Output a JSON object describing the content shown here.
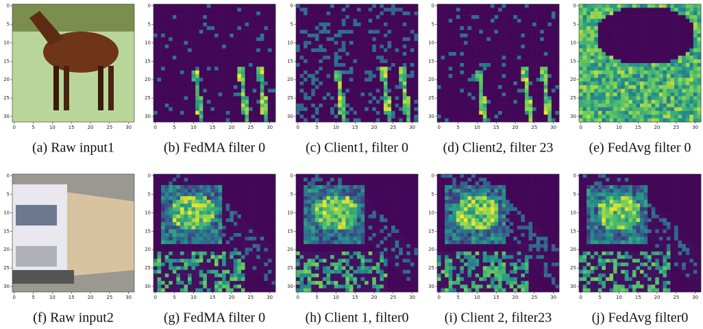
{
  "axis_ticks": [
    0,
    5,
    10,
    15,
    20,
    25,
    30
  ],
  "panels": [
    {
      "caption": "(a) Raw input1"
    },
    {
      "caption": "(b) FedMA filter 0"
    },
    {
      "caption": "(c) Client1, filter 0"
    },
    {
      "caption": "(d) Client2, filter 23"
    },
    {
      "caption": "(e) FedAvg filter 0"
    },
    {
      "caption": "(f) Raw input2"
    },
    {
      "caption": "(g) FedMA filter 0"
    },
    {
      "caption": "(h) Client 1, filter0"
    },
    {
      "caption": "(i) Client 2, filter23"
    },
    {
      "caption": "(j) FedAvg filter0"
    }
  ]
}
